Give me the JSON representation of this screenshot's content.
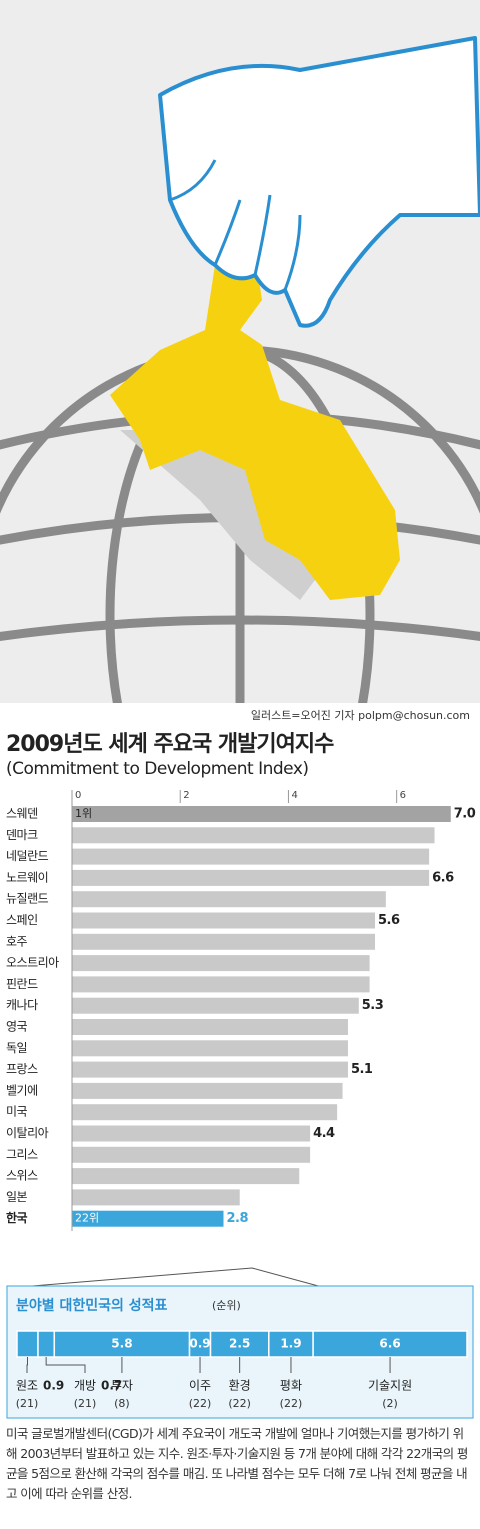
{
  "illustration_credit": "일러스트=오어진 기자 polpm@chosun.com",
  "chart_data": [
    {
      "type": "bar",
      "orientation": "horizontal",
      "title": "2009년도 세계 주요국 개발기여지수",
      "subtitle": "(Commitment to Development Index)",
      "categories": [
        "스웨덴",
        "덴마크",
        "네덜란드",
        "노르웨이",
        "뉴질랜드",
        "스페인",
        "호주",
        "오스트리아",
        "핀란드",
        "캐나다",
        "영국",
        "독일",
        "프랑스",
        "벨기에",
        "미국",
        "이탈리아",
        "그리스",
        "스위스",
        "일본",
        "한국"
      ],
      "values": [
        7.0,
        6.7,
        6.6,
        6.6,
        5.8,
        5.6,
        5.6,
        5.5,
        5.5,
        5.3,
        5.1,
        5.1,
        5.1,
        5.0,
        4.9,
        4.4,
        4.4,
        4.2,
        3.1,
        2.8
      ],
      "value_labels": [
        "7.0",
        null,
        null,
        "6.6",
        null,
        "5.6",
        null,
        null,
        null,
        "5.3",
        null,
        null,
        "5.1",
        null,
        null,
        "4.4",
        null,
        null,
        null,
        "2.8"
      ],
      "rank_labels": [
        "1위",
        null,
        null,
        null,
        null,
        null,
        null,
        null,
        null,
        null,
        null,
        null,
        null,
        null,
        null,
        null,
        null,
        null,
        null,
        "22위"
      ],
      "colors": [
        "#a3a3a3",
        "#c9c9c9",
        "#c9c9c9",
        "#c9c9c9",
        "#c9c9c9",
        "#c9c9c9",
        "#c9c9c9",
        "#c9c9c9",
        "#c9c9c9",
        "#c9c9c9",
        "#c9c9c9",
        "#c9c9c9",
        "#c9c9c9",
        "#c9c9c9",
        "#c9c9c9",
        "#c9c9c9",
        "#c9c9c9",
        "#c9c9c9",
        "#c9c9c9",
        "#3aa6db"
      ],
      "xlim": [
        0,
        7.3
      ],
      "xticks": [
        0,
        2,
        4,
        6
      ]
    },
    {
      "type": "stacked-bar",
      "title": "분야별 대한민국의 성적표",
      "subtitle": "(순위)",
      "categories": [
        "원조",
        "개방",
        "투자",
        "이주",
        "환경",
        "평화",
        "기술지원"
      ],
      "values": [
        0.9,
        0.7,
        5.8,
        0.9,
        2.5,
        1.9,
        6.6
      ],
      "ranks": [
        "(21)",
        "(21)",
        "(8)",
        "(22)",
        "(22)",
        "(22)",
        "(2)"
      ],
      "color": "#3aa6db"
    }
  ],
  "footnote": "미국 글로벌개발센터(CGD)가 세계 주요국이 개도국 개발에 얼마나 기여했는지를 평가하기 위해 2003년부터 발표하고 있는 지수. 원조·투자·기술지원 등 7개 분야에 대해 각각 22개국의 평균을 5점으로 환산해 각국의 점수를 매김. 또 나라별 점수는 모두 더해 7로 나눠 전체 평균을 내고 이에 따라 순위를 산정."
}
